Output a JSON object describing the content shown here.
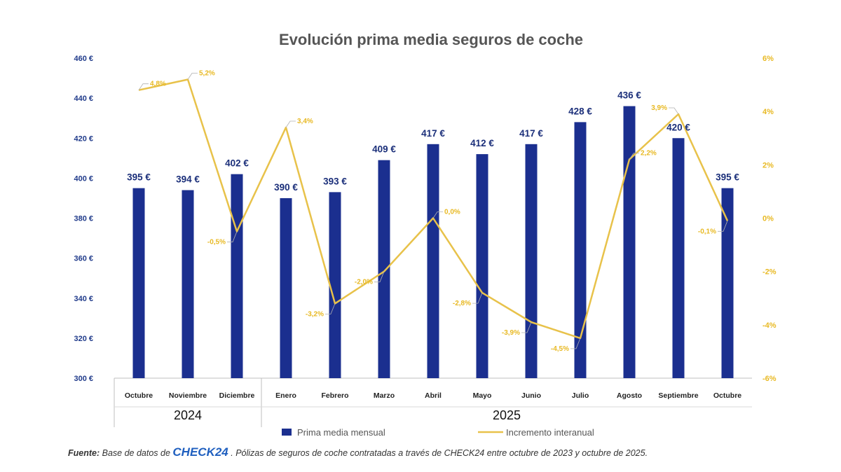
{
  "chart_data": {
    "type": "bar+line",
    "title": "Evolución prima media seguros de coche",
    "categories": [
      "Octubre",
      "Noviembre",
      "Diciembre",
      "Enero",
      "Febrero",
      "Marzo",
      "Abril",
      "Mayo",
      "Junio",
      "Julio",
      "Agosto",
      "Septiembre",
      "Octubre"
    ],
    "year_groups": [
      {
        "label": "2024",
        "count": 3
      },
      {
        "label": "2025",
        "count": 10
      }
    ],
    "series": [
      {
        "name": "Prima media mensual",
        "type": "bar",
        "axis": "left",
        "color": "#1b2f8f",
        "values": [
          395,
          394,
          402,
          390,
          393,
          409,
          417,
          412,
          417,
          428,
          436,
          420,
          395
        ],
        "labels": [
          "395 €",
          "394 €",
          "402 €",
          "390 €",
          "393 €",
          "409 €",
          "417 €",
          "412 €",
          "417 €",
          "428 €",
          "436 €",
          "420 €",
          "395 €"
        ]
      },
      {
        "name": "Incremento interanual",
        "type": "line",
        "axis": "right",
        "color": "#e8c24a",
        "values": [
          4.8,
          5.2,
          -0.5,
          3.4,
          -3.2,
          -2.0,
          0.0,
          -2.8,
          -3.9,
          -4.5,
          2.2,
          3.9,
          -0.1
        ],
        "labels": [
          "4,8%",
          "5,2%",
          "-0,5%",
          "3,4%",
          "-3,2%",
          "-2,0%",
          "0,0%",
          "-2,8%",
          "-3,9%",
          "-4,5%",
          "2,2%",
          "3,9%",
          "-0,1%"
        ]
      }
    ],
    "y_left": {
      "min": 300,
      "max": 460,
      "step": 20,
      "tick_labels": [
        "300 €",
        "320 €",
        "340 €",
        "360 €",
        "380 €",
        "400 €",
        "420 €",
        "440 €",
        "460 €"
      ]
    },
    "y_right": {
      "min": -6,
      "max": 6,
      "step": 2,
      "tick_labels": [
        "-6%",
        "-4%",
        "-2%",
        "0%",
        "2%",
        "4%",
        "6%"
      ]
    },
    "grid": false,
    "legend_position": "bottom"
  },
  "source": {
    "prefix": "Fuente:",
    "before_logo": " Base de datos de ",
    "logo": "CHECK24",
    "after_logo": ". Pólizas de seguros de coche contratadas a través de CHECK24 entre octubre de 2023 y octubre de 2025."
  }
}
